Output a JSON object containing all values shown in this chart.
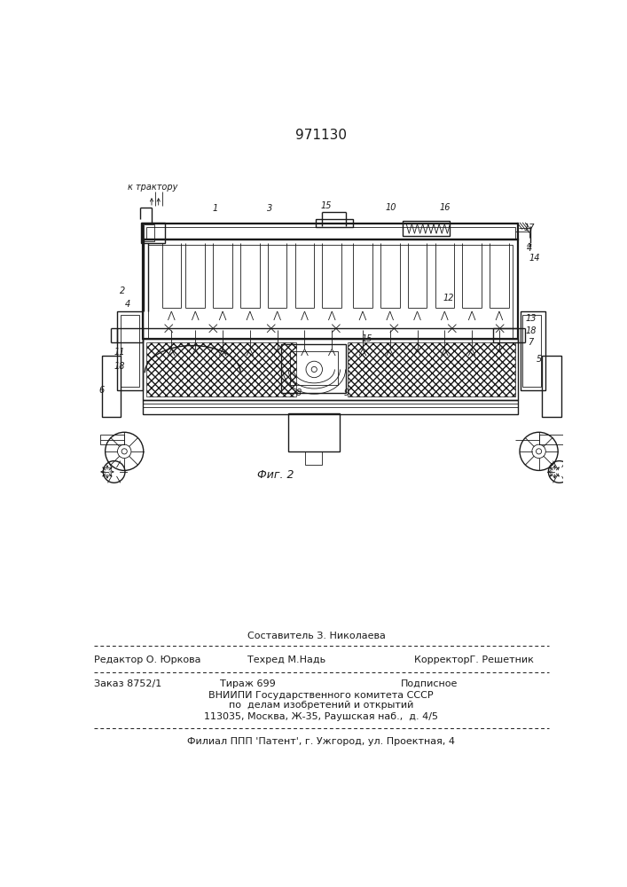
{
  "patent_number": "971130",
  "fig_label": "Фиг. 2",
  "footer": {
    "col1_top": "Составитель З. Николаева",
    "col1_r1": "Редактор О. Юркова",
    "col2_r1": "Техред М.Надь",
    "col3_r1": "КорректорГ. Решетник",
    "col1_r2": "Заказ 8752/1",
    "col2_r2": "Тираж 699",
    "col3_r2": "Подписное",
    "vniipи1": "ВНИИПИ Государственного комитета СССР",
    "vniipи2": "по  делам изобретений и открытий",
    "vniipи3": "113035, Москва, Ж-35, Раушская наб.,  д. 4/5",
    "filial": "Филиал ППП 'Патент', г. Ужгород, ул. Проектная, 4"
  },
  "bg_color": "#ffffff",
  "text_color": "#1a1a1a",
  "drawing_color": "#1a1a1a"
}
